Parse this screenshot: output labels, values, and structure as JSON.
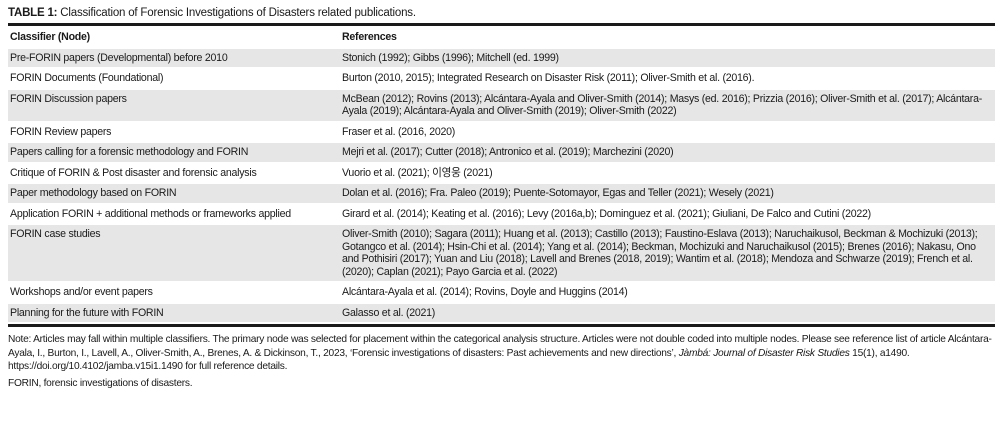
{
  "caption": {
    "label": "TABLE 1:",
    "text": " Classification of Forensic Investigations of Disasters related publications."
  },
  "headers": [
    "Classifier (Node)",
    "References"
  ],
  "rows": [
    {
      "classifier": "Pre-FORIN papers (Developmental) before 2010",
      "references": "Stonich (1992); Gibbs (1996); Mitchell (ed. 1999)"
    },
    {
      "classifier": "FORIN Documents (Foundational)",
      "references": "Burton (2010, 2015); Integrated Research on Disaster Risk (2011); Oliver-Smith et al. (2016)."
    },
    {
      "classifier": "FORIN Discussion papers",
      "references": "McBean (2012); Rovins (2013); Alcántara-Ayala and Oliver-Smith (2014); Masys (ed. 2016); Prizzia (2016); Oliver-Smith et al. (2017); Alcántara-Ayala (2019); Alcántara-Ayala and Oliver-Smith (2019); Oliver-Smith (2022)"
    },
    {
      "classifier": "FORIN Review papers",
      "references": "Fraser et al. (2016, 2020)"
    },
    {
      "classifier": "Papers calling for a forensic methodology and FORIN",
      "references": "Mejri et al. (2017); Cutter (2018); Antronico et al. (2019); Marchezini (2020)"
    },
    {
      "classifier": "Critique of FORIN & Post disaster and forensic analysis",
      "references": "Vuorio et al. (2021); 이영웅 (2021)"
    },
    {
      "classifier": "Paper methodology based on FORIN",
      "references": "Dolan et al. (2016); Fra. Paleo (2019); Puente-Sotomayor, Egas and Teller (2021); Wesely (2021)"
    },
    {
      "classifier": "Application FORIN + additional methods or frameworks applied",
      "references": "Girard et al. (2014); Keating et al. (2016); Levy (2016a,b); Dominguez et al. (2021); Giuliani, De Falco and Cutini (2022)"
    },
    {
      "classifier": "FORIN case studies",
      "references": "Oliver-Smith (2010); Sagara (2011); Huang et al. (2013); Castillo (2013); Faustino-Eslava (2013); Naruchaikusol, Beckman & Mochizuki (2013); Gotangco et al. (2014); Hsin-Chi et al. (2014); Yang et al. (2014); Beckman, Mochizuki and Naruchaikusol (2015); Brenes (2016); Nakasu, Ono and Pothisiri (2017); Yuan and Liu (2018); Lavell and Brenes (2018, 2019); Wantim et al. (2018); Mendoza and Schwarze (2019); French et al. (2020); Caplan (2021); Payo Garcia et al. (2022)"
    },
    {
      "classifier": "Workshops and/or event papers",
      "references": "Alcántara-Ayala et al. (2014); Rovins, Doyle and Huggins (2014)"
    },
    {
      "classifier": "Planning for the future with FORIN",
      "references": "Galasso et al. (2021)"
    }
  ],
  "note": {
    "text1": "Note: Articles may fall within multiple classifiers. The primary node was selected for placement within the categorical analysis structure. Articles were not double coded into multiple nodes. Please see reference list of article Alcántara-Ayala, I., Burton, I., Lavell, A., Oliver-Smith, A., Brenes, A. & Dickinson, T., 2023, ‘Forensic investigations of disasters: Past achievements and new directions’, ",
    "journal": "Jàmbá: Journal of Disaster Risk Studies",
    "text2": " 15(1), a1490. https://doi.org/10.4102/jamba.v15i1.1490 for full reference details."
  },
  "abbreviation": "FORIN, forensic investigations of disasters.",
  "colors": {
    "row_shade": "#e6e6e6",
    "rule": "#1a1a1a"
  }
}
